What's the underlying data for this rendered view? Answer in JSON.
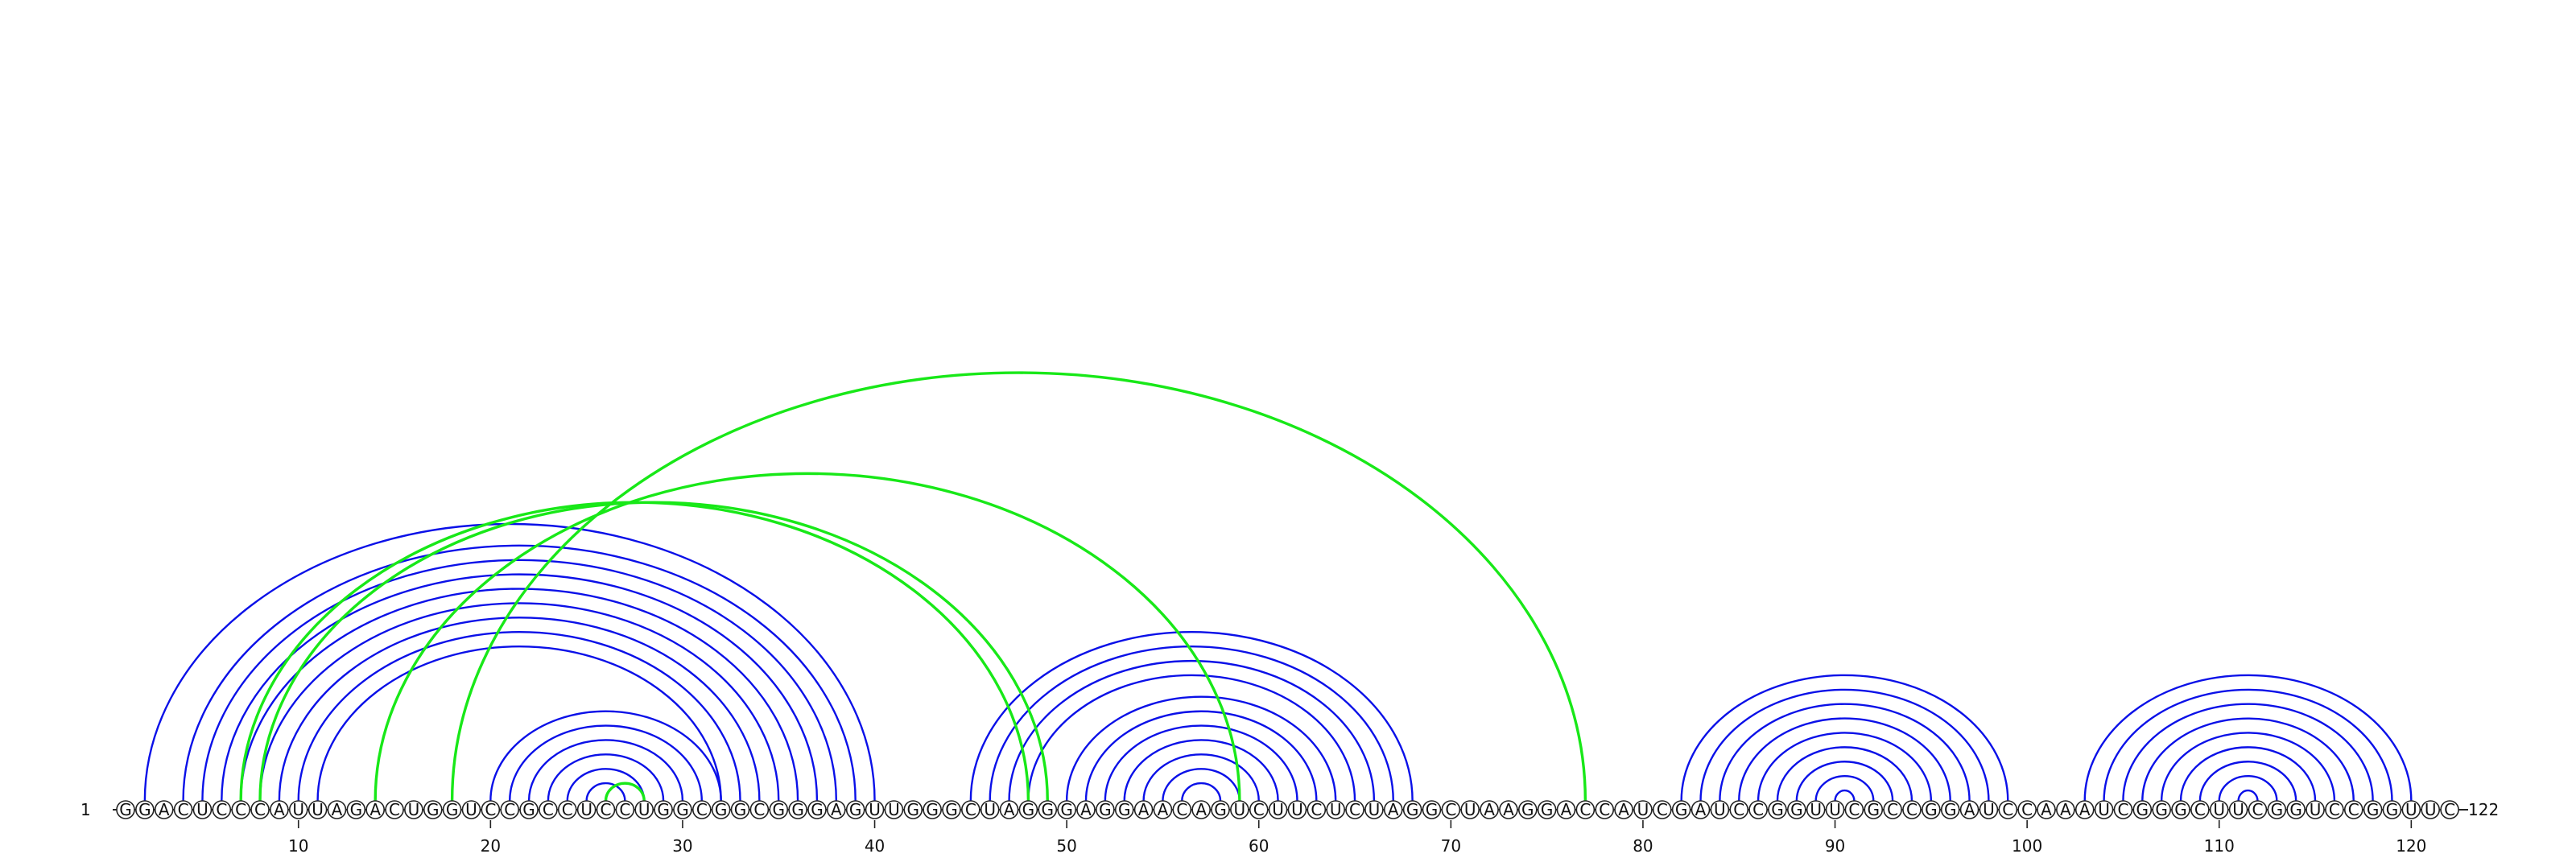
{
  "sequence": "GGACUCCCAUUAGACUGGUCCGCCUCCUGGCGGCGGGAGUUGGGCUAGGGAGGAACAGUCUUCUCUAGGCUAAGGACCAUCGAUCCGGUUCGCCGGAUCCAAAUCGGGCUUCGGUCCGGUUC",
  "length": 122,
  "start_label": "1",
  "end_label": "122",
  "tick_labels": [
    "10",
    "20",
    "30",
    "40",
    "50",
    "60",
    "70",
    "80",
    "90",
    "100",
    "110",
    "120"
  ],
  "colors": {
    "canonical_pair": "#0a10e8",
    "pseudoknot_pair": "#18e818",
    "nucleotide_stroke": "#222222",
    "nucleotide_fill": "#ffffff"
  },
  "pairs": [
    [
      2,
      40
    ],
    [
      4,
      39
    ],
    [
      5,
      38
    ],
    [
      6,
      37
    ],
    [
      7,
      36
    ],
    [
      8,
      35
    ],
    [
      9,
      34
    ],
    [
      10,
      33
    ],
    [
      11,
      32
    ],
    [
      20,
      32
    ],
    [
      21,
      31
    ],
    [
      22,
      30
    ],
    [
      23,
      29
    ],
    [
      24,
      28
    ],
    [
      25,
      27
    ],
    [
      45,
      68
    ],
    [
      46,
      67
    ],
    [
      47,
      66
    ],
    [
      48,
      65
    ],
    [
      50,
      64
    ],
    [
      51,
      63
    ],
    [
      52,
      62
    ],
    [
      53,
      61
    ],
    [
      54,
      60
    ],
    [
      55,
      59
    ],
    [
      56,
      58
    ],
    [
      82,
      99
    ],
    [
      83,
      98
    ],
    [
      84,
      97
    ],
    [
      85,
      96
    ],
    [
      86,
      95
    ],
    [
      87,
      94
    ],
    [
      88,
      93
    ],
    [
      89,
      92
    ],
    [
      90,
      91
    ],
    [
      103,
      120
    ],
    [
      104,
      119
    ],
    [
      105,
      118
    ],
    [
      106,
      117
    ],
    [
      107,
      116
    ],
    [
      108,
      115
    ],
    [
      109,
      114
    ],
    [
      110,
      113
    ],
    [
      111,
      112
    ]
  ],
  "pseudoknots": [
    [
      7,
      48
    ],
    [
      8,
      49
    ],
    [
      14,
      59
    ],
    [
      18,
      77
    ],
    [
      26,
      28
    ]
  ]
}
